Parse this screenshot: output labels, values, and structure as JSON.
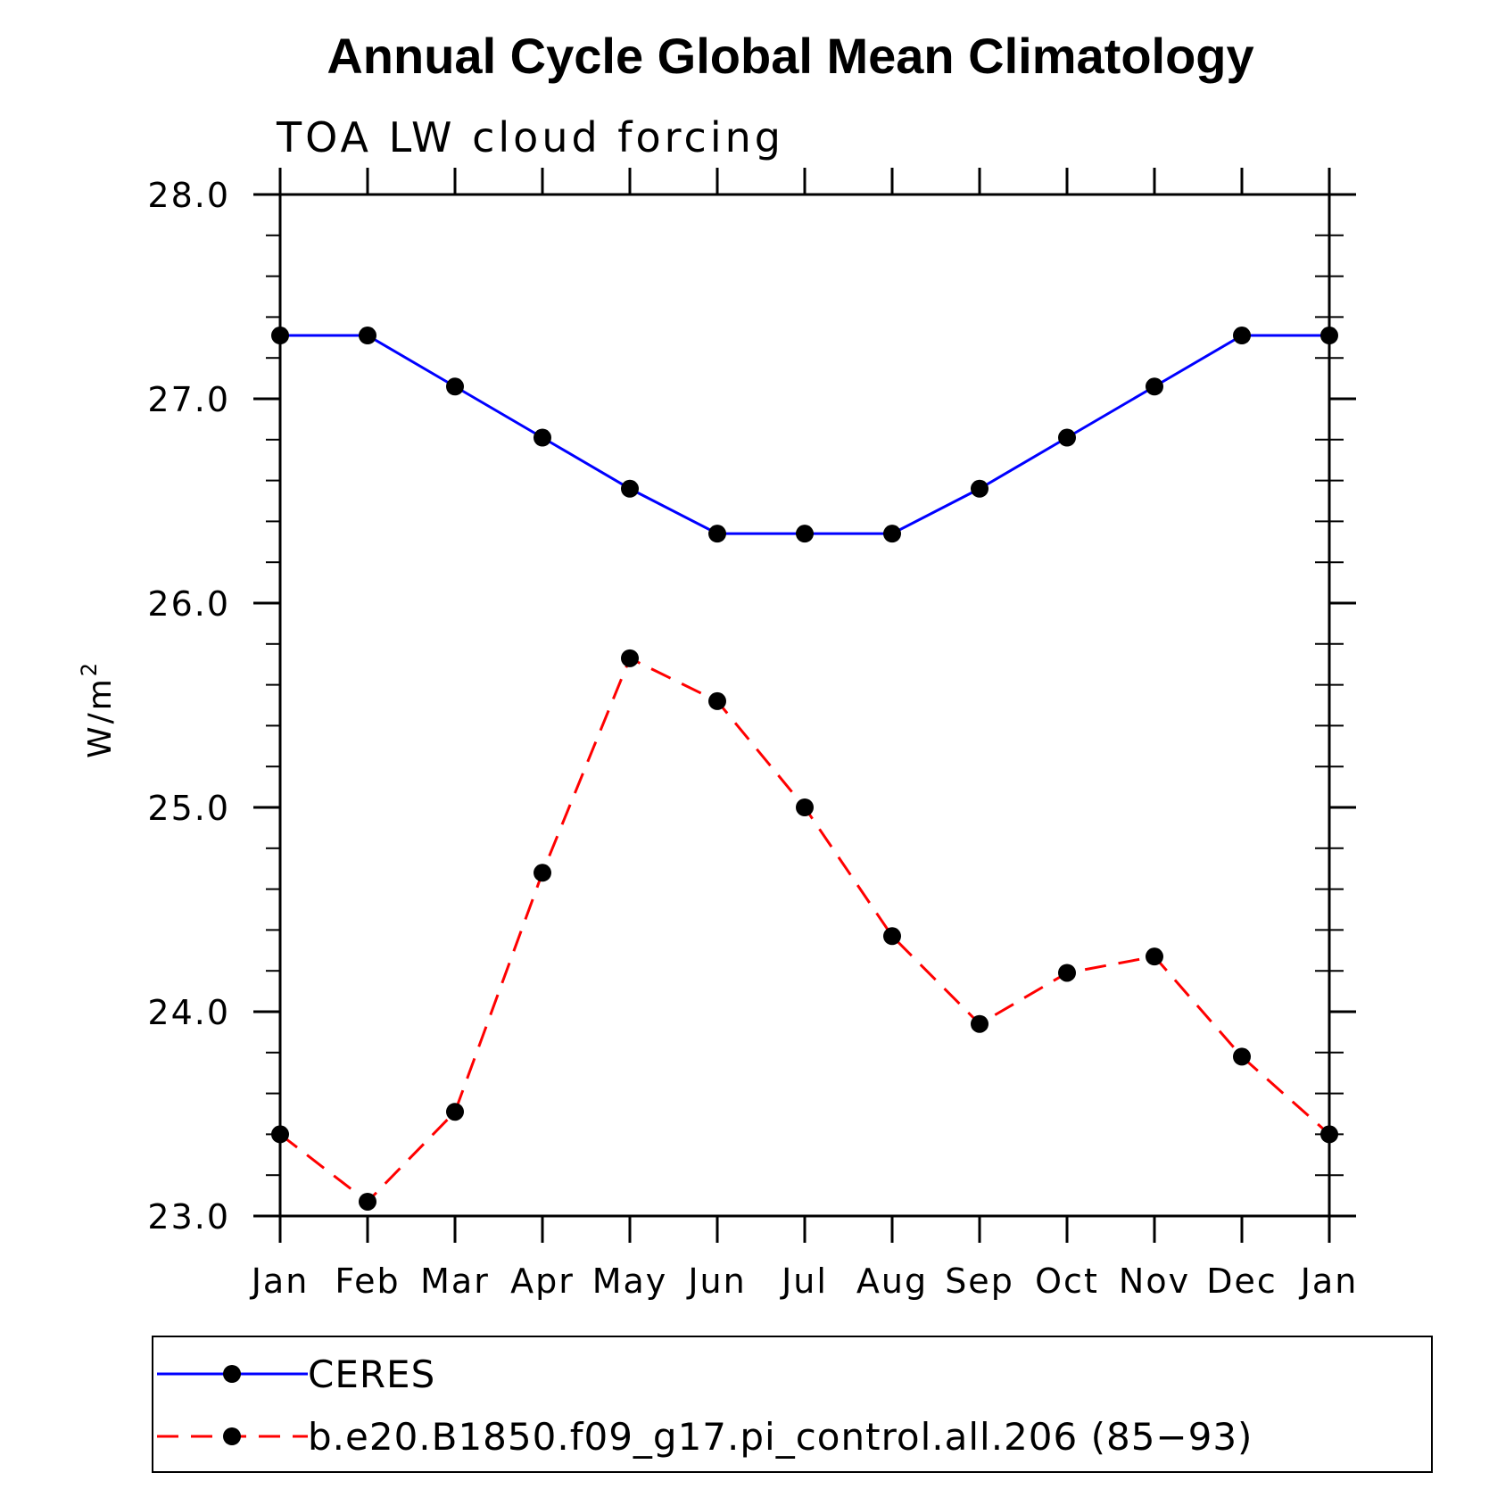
{
  "chart_data": {
    "type": "line",
    "title": "Annual Cycle Global Mean Climatology",
    "subtitle": "TOA LW cloud forcing",
    "ylabel": "W/m",
    "ylabel_superscript": "2",
    "xlabel": "",
    "categories": [
      "Jan",
      "Feb",
      "Mar",
      "Apr",
      "May",
      "Jun",
      "Jul",
      "Aug",
      "Sep",
      "Oct",
      "Nov",
      "Dec",
      "Jan"
    ],
    "ylim": [
      23.0,
      28.0
    ],
    "yticks": [
      "23.0",
      "24.0",
      "25.0",
      "26.0",
      "27.0",
      "28.0"
    ],
    "legend_position": "bottom",
    "grid": false,
    "series": [
      {
        "name": "CERES",
        "color": "#0000ff",
        "dash": "solid",
        "marker_color": "#000000",
        "values": [
          27.31,
          27.31,
          27.06,
          26.81,
          26.56,
          26.34,
          26.34,
          26.34,
          26.56,
          26.81,
          27.06,
          27.31,
          27.31
        ]
      },
      {
        "name": "b.e20.B1850.f09_g17.pi_control.all.206 (85−93)",
        "color": "#ff0000",
        "dash": "dashed",
        "marker_color": "#000000",
        "values": [
          23.4,
          23.07,
          23.51,
          24.68,
          25.73,
          25.52,
          25.0,
          24.37,
          23.94,
          24.19,
          24.27,
          23.78,
          23.4
        ]
      }
    ]
  }
}
